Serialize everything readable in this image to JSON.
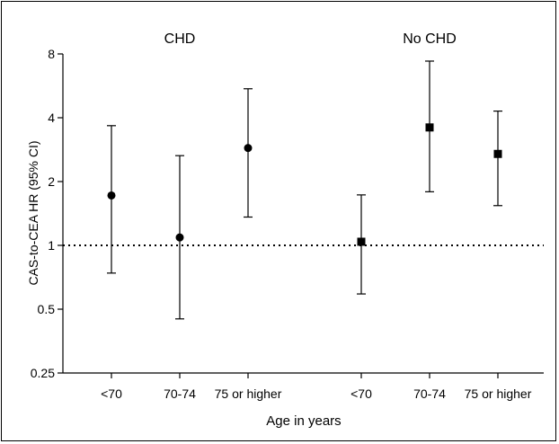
{
  "chart_data": {
    "type": "scatter",
    "ylabel": "CAS-to-CEA HR (95% CI)",
    "xlabel": "Age in years",
    "y_scale": "log2",
    "ylim": [
      0.25,
      8
    ],
    "yticks": [
      {
        "value": 0.25,
        "label": "0.25"
      },
      {
        "value": 0.5,
        "label": "0.5"
      },
      {
        "value": 1,
        "label": "1"
      },
      {
        "value": 2,
        "label": "2"
      },
      {
        "value": 4,
        "label": "4"
      },
      {
        "value": 8,
        "label": "8"
      }
    ],
    "reference_line": {
      "value": 1,
      "style": "dotted"
    },
    "groups": [
      {
        "label": "CHD",
        "marker": "circle",
        "points": [
          {
            "category": "<70",
            "hr": 1.72,
            "ci": [
              0.74,
              3.67
            ]
          },
          {
            "category": "70-74",
            "hr": 1.09,
            "ci": [
              0.45,
              2.65
            ]
          },
          {
            "category": "75 or higher",
            "hr": 2.88,
            "ci": [
              1.36,
              5.48
            ]
          }
        ]
      },
      {
        "label": "No CHD",
        "marker": "square",
        "points": [
          {
            "category": "<70",
            "hr": 1.04,
            "ci": [
              0.59,
              1.73
            ]
          },
          {
            "category": "70-74",
            "hr": 3.6,
            "ci": [
              1.79,
              7.4
            ]
          },
          {
            "category": "75 or higher",
            "hr": 2.7,
            "ci": [
              1.54,
              4.3
            ]
          }
        ]
      }
    ]
  }
}
